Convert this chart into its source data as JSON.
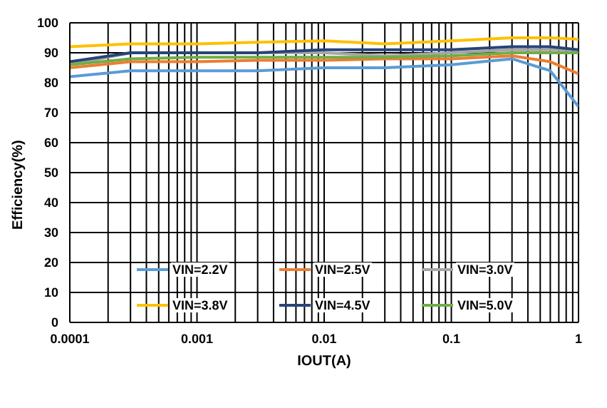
{
  "chart_data": {
    "type": "line",
    "xlabel": "IOUT(A)",
    "ylabel": "Efficiency(%)",
    "x": [
      0.0001,
      0.0003,
      0.001,
      0.003,
      0.01,
      0.03,
      0.1,
      0.3,
      0.6,
      1
    ],
    "series": [
      {
        "name": "VIN=2.2V",
        "color": "#5b9bd5",
        "values": [
          82,
          84,
          84,
          84,
          85,
          85,
          86,
          88,
          84,
          72
        ]
      },
      {
        "name": "VIN=2.5V",
        "color": "#ed7d31",
        "values": [
          85,
          87,
          87,
          87.5,
          87.5,
          88,
          88,
          89,
          87,
          83
        ]
      },
      {
        "name": "VIN=3.0V",
        "color": "#a5a5a5",
        "values": [
          86,
          90,
          90,
          90,
          90,
          89,
          90,
          91,
          91,
          91
        ]
      },
      {
        "name": "VIN=3.8V",
        "color": "#ffc000",
        "values": [
          92,
          93,
          93,
          93.5,
          94,
          93,
          94,
          95,
          95,
          94.5
        ]
      },
      {
        "name": "VIN=4.5V",
        "color": "#264478",
        "values": [
          87,
          90,
          90,
          90,
          91,
          91,
          91,
          92,
          92,
          91
        ]
      },
      {
        "name": "VIN=5.0V",
        "color": "#70ad47",
        "values": [
          86,
          88,
          88.5,
          88.5,
          88.5,
          88.5,
          89,
          90,
          90,
          90
        ]
      }
    ],
    "log": "x",
    "xlim": [
      0.0001,
      1
    ],
    "xticks": [
      {
        "value": 0.0001,
        "label": "0.0001"
      },
      {
        "value": 0.0002,
        "label": null
      },
      {
        "value": 0.0003,
        "label": null
      },
      {
        "value": 0.0004,
        "label": null
      },
      {
        "value": 0.0005,
        "label": null
      },
      {
        "value": 0.0006,
        "label": null
      },
      {
        "value": 0.0007,
        "label": null
      },
      {
        "value": 0.0008,
        "label": null
      },
      {
        "value": 0.0009,
        "label": null
      },
      {
        "value": 0.001,
        "label": "0.001"
      },
      {
        "value": 0.002,
        "label": null
      },
      {
        "value": 0.003,
        "label": null
      },
      {
        "value": 0.004,
        "label": null
      },
      {
        "value": 0.005,
        "label": null
      },
      {
        "value": 0.006,
        "label": null
      },
      {
        "value": 0.007,
        "label": null
      },
      {
        "value": 0.008,
        "label": null
      },
      {
        "value": 0.009,
        "label": null
      },
      {
        "value": 0.01,
        "label": "0.01"
      },
      {
        "value": 0.02,
        "label": null
      },
      {
        "value": 0.03,
        "label": null
      },
      {
        "value": 0.04,
        "label": null
      },
      {
        "value": 0.05,
        "label": null
      },
      {
        "value": 0.06,
        "label": null
      },
      {
        "value": 0.07,
        "label": null
      },
      {
        "value": 0.08,
        "label": null
      },
      {
        "value": 0.09,
        "label": null
      },
      {
        "value": 0.1,
        "label": "0.1"
      },
      {
        "value": 0.2,
        "label": null
      },
      {
        "value": 0.3,
        "label": null
      },
      {
        "value": 0.4,
        "label": null
      },
      {
        "value": 0.5,
        "label": null
      },
      {
        "value": 0.6,
        "label": null
      },
      {
        "value": 0.7,
        "label": null
      },
      {
        "value": 0.8,
        "label": null
      },
      {
        "value": 0.9,
        "label": null
      },
      {
        "value": 1,
        "label": "1"
      }
    ],
    "ylim": [
      0,
      100
    ],
    "yticks": [
      0,
      10,
      20,
      30,
      40,
      50,
      60,
      70,
      80,
      90,
      100
    ],
    "grid": true,
    "legend": "bottom",
    "marker": "none",
    "line_style": "solid"
  }
}
